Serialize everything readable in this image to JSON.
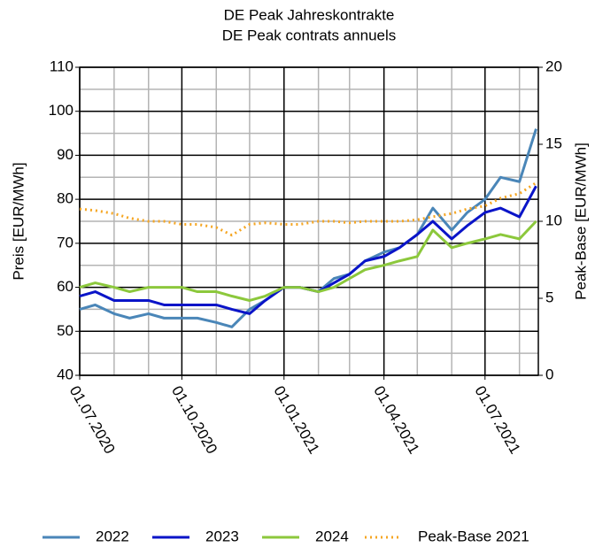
{
  "chart_data": {
    "type": "line",
    "title": [
      "DE Peak Jahreskontrakte",
      "DE Peak contrats annuels"
    ],
    "ylabel": "Preis [EUR/MWh]",
    "y2label": "Peak-Base [EUR/MWh]",
    "x": [
      "2020-07-01",
      "2020-07-15",
      "2020-08-01",
      "2020-08-15",
      "2020-09-01",
      "2020-09-15",
      "2020-10-01",
      "2020-10-15",
      "2020-11-01",
      "2020-11-15",
      "2020-12-01",
      "2020-12-15",
      "2021-01-01",
      "2021-01-15",
      "2021-02-01",
      "2021-02-15",
      "2021-03-01",
      "2021-03-15",
      "2021-04-01",
      "2021-04-15",
      "2021-05-01",
      "2021-05-15",
      "2021-06-01",
      "2021-06-15",
      "2021-07-01",
      "2021-07-15",
      "2021-08-01",
      "2021-08-16"
    ],
    "xlim": [
      "2020-07-01",
      "2021-08-18"
    ],
    "xticks": [
      {
        "value": "2020-07-01",
        "label": "01.07.2020"
      },
      {
        "value": "2020-10-01",
        "label": "01.10.2020"
      },
      {
        "value": "2021-01-01",
        "label": "01.01.2021"
      },
      {
        "value": "2021-04-01",
        "label": "01.04.2021"
      },
      {
        "value": "2021-07-01",
        "label": "01.07.2021"
      }
    ],
    "x_minor_grid": [
      "2020-08-01",
      "2020-09-01",
      "2020-11-01",
      "2020-12-01",
      "2021-02-01",
      "2021-03-01",
      "2021-05-01",
      "2021-06-01",
      "2021-08-01"
    ],
    "ylim": [
      40,
      110
    ],
    "yticks": [
      40,
      50,
      60,
      70,
      80,
      90,
      100,
      110
    ],
    "y_minor_grid": [
      45,
      55,
      65,
      75,
      85,
      95,
      105
    ],
    "y2lim": [
      0,
      20
    ],
    "y2ticks": [
      0,
      5,
      10,
      15,
      20
    ],
    "grid": true,
    "legend": "bottom",
    "series": [
      {
        "name": "2022",
        "color": "#4a86b8",
        "values": [
          55,
          56,
          54,
          53,
          54,
          53,
          53,
          53,
          52,
          51,
          55,
          57,
          60,
          60,
          59,
          62,
          63,
          66,
          68,
          69,
          72,
          78,
          73,
          77,
          80,
          85,
          84,
          96
        ]
      },
      {
        "name": "2023",
        "color": "#0a14c8",
        "values": [
          58,
          59,
          57,
          57,
          57,
          56,
          56,
          56,
          56,
          55,
          54,
          57,
          60,
          60,
          59,
          61,
          63,
          66,
          67,
          69,
          72,
          75,
          71,
          74,
          77,
          78,
          76,
          83
        ]
      },
      {
        "name": "2024",
        "color": "#8cc83c",
        "values": [
          60,
          61,
          60,
          59,
          60,
          60,
          60,
          59,
          59,
          58,
          57,
          58,
          60,
          60,
          59,
          60,
          62,
          64,
          65,
          66,
          67,
          73,
          69,
          70,
          71,
          72,
          71,
          75
        ]
      },
      {
        "name": "Peak-Base 2021",
        "color": "#f5a623",
        "axis": "y2",
        "line_style": "dotted",
        "values": [
          10.8,
          10.7,
          10.5,
          10.2,
          10.0,
          10.0,
          9.8,
          9.8,
          9.6,
          9.1,
          9.8,
          9.9,
          9.8,
          9.8,
          10.0,
          10.0,
          9.9,
          10.0,
          10.0,
          10.0,
          10.1,
          10.3,
          10.5,
          10.8,
          11.0,
          11.5,
          11.8,
          12.5
        ]
      }
    ]
  }
}
